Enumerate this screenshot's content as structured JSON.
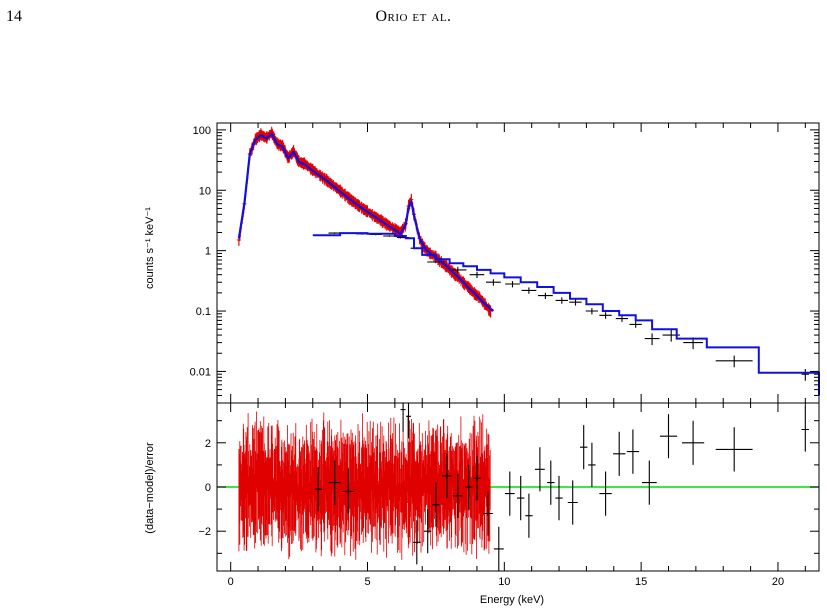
{
  "page": {
    "number": "14",
    "running_head": "Orio et al."
  },
  "colors": {
    "data_red": "#e00000",
    "data_black": "#000000",
    "model": "#1010e0",
    "zero_line": "#00dd00",
    "axis": "#000000"
  },
  "chart_data": [
    {
      "type": "line",
      "panel": "top",
      "title": "",
      "xlabel": "",
      "ylabel": "counts s⁻¹ keV⁻¹",
      "yscale": "log",
      "xlim": [
        -0.5,
        21.5
      ],
      "ylim": [
        0.003,
        130
      ],
      "y_ticks": [
        0.01,
        0.1,
        1,
        10,
        100
      ],
      "y_tick_labels": [
        "0.01",
        "0.1",
        "1",
        "10",
        "100"
      ],
      "series": [
        {
          "color": "#e00000",
          "style": "data with error bars",
          "x": [
            0.3,
            0.5,
            0.7,
            0.9,
            1.1,
            1.3,
            1.5,
            1.7,
            1.9,
            2.1,
            2.3,
            2.5,
            2.7,
            3.0,
            3.5,
            4.0,
            4.5,
            5.0,
            5.5,
            6.0,
            6.2,
            6.4,
            6.5,
            6.6,
            6.7,
            6.9,
            7.1,
            7.3,
            7.5,
            7.7,
            7.9,
            8.1,
            8.3,
            8.5,
            8.7,
            8.9,
            9.1,
            9.3,
            9.5
          ],
          "y": [
            1.5,
            6,
            40,
            70,
            85,
            75,
            90,
            60,
            55,
            35,
            45,
            30,
            28,
            22,
            15,
            10,
            6.5,
            4.5,
            3.2,
            2.3,
            2.0,
            2.8,
            5.5,
            7.0,
            4.0,
            1.6,
            1.1,
            0.9,
            0.8,
            0.65,
            0.55,
            0.45,
            0.38,
            0.3,
            0.25,
            0.2,
            0.17,
            0.13,
            0.1
          ]
        },
        {
          "color": "#000000",
          "style": "data with error bars",
          "x": [
            3.2,
            3.8,
            4.3,
            4.8,
            5.3,
            5.8,
            6.3,
            6.8,
            7.5,
            8.3,
            9.0,
            9.6,
            10.3,
            10.9,
            11.5,
            12.1,
            12.6,
            13.2,
            13.7,
            14.3,
            14.8,
            15.4,
            16.1,
            16.9,
            18.4,
            21.0
          ],
          "y": [
            1.8,
            1.95,
            1.95,
            1.9,
            1.85,
            1.75,
            1.65,
            1.1,
            0.65,
            0.48,
            0.4,
            0.3,
            0.28,
            0.22,
            0.18,
            0.15,
            0.14,
            0.1,
            0.085,
            0.075,
            0.06,
            0.035,
            0.04,
            0.03,
            0.015,
            0.009
          ]
        },
        {
          "color": "#1010e0",
          "style": "model (blue, first dataset)",
          "x": [
            0.3,
            0.5,
            0.7,
            0.9,
            1.1,
            1.3,
            1.5,
            1.7,
            1.9,
            2.1,
            2.3,
            2.5,
            2.7,
            3.0,
            3.5,
            4.0,
            4.5,
            5.0,
            5.5,
            6.0,
            6.2,
            6.4,
            6.5,
            6.6,
            6.7,
            6.9,
            7.1,
            7.3,
            7.5,
            7.7,
            7.9,
            8.1,
            8.3,
            8.5,
            8.7,
            8.9,
            9.1,
            9.3,
            9.6
          ],
          "y": [
            1.6,
            6,
            40,
            68,
            82,
            72,
            86,
            58,
            52,
            34,
            43,
            29,
            27,
            21,
            14.5,
            9.5,
            6.3,
            4.4,
            3.1,
            2.2,
            1.9,
            2.7,
            5.2,
            6.5,
            3.8,
            1.6,
            1.1,
            0.9,
            0.78,
            0.65,
            0.55,
            0.45,
            0.37,
            0.3,
            0.24,
            0.2,
            0.16,
            0.13,
            0.1
          ]
        },
        {
          "color": "#1010e0",
          "style": "model step (blue, second dataset)",
          "x": [
            3.0,
            4.0,
            5.0,
            6.0,
            6.4,
            6.7,
            7.0,
            7.5,
            8.0,
            8.5,
            9.0,
            9.5,
            10.0,
            10.6,
            11.2,
            11.8,
            12.4,
            13.0,
            13.6,
            14.2,
            14.8,
            15.4,
            16.3,
            17.4,
            19.3,
            21.5
          ],
          "y": [
            1.8,
            1.95,
            1.9,
            1.75,
            1.6,
            1.1,
            0.85,
            0.72,
            0.62,
            0.55,
            0.48,
            0.42,
            0.36,
            0.3,
            0.25,
            0.2,
            0.16,
            0.13,
            0.1,
            0.085,
            0.07,
            0.05,
            0.035,
            0.025,
            0.0095,
            0.004
          ]
        }
      ]
    },
    {
      "type": "scatter",
      "panel": "bottom",
      "title": "",
      "xlabel": "Energy (keV)",
      "ylabel": "(data−model)/error",
      "xlim": [
        -0.5,
        21.5
      ],
      "ylim": [
        -3.8,
        3.8
      ],
      "x_ticks": [
        0,
        5,
        10,
        15,
        20
      ],
      "x_tick_labels": [
        "0",
        "5",
        "10",
        "15",
        "20"
      ],
      "y_ticks": [
        -2,
        0,
        2
      ],
      "y_tick_labels": [
        "−2",
        "0",
        "2"
      ],
      "reference_line": {
        "y": 0,
        "color": "#00dd00"
      },
      "series": [
        {
          "color": "#e00000",
          "style": "residual bars, dense, ~±3 spread for 0.3–9.5 keV"
        },
        {
          "color": "#000000",
          "style": "residual crosses",
          "x": [
            3.2,
            3.8,
            4.3,
            6.3,
            6.5,
            6.8,
            7.2,
            7.5,
            7.9,
            8.3,
            8.7,
            9.0,
            9.4,
            9.8,
            10.2,
            10.6,
            10.9,
            11.3,
            11.7,
            12.0,
            12.5,
            12.9,
            13.2,
            13.7,
            14.2,
            14.7,
            15.3,
            16.0,
            16.9,
            18.4,
            21.0
          ],
          "y": [
            -0.1,
            0.2,
            -0.2,
            3.5,
            3.2,
            -2.5,
            -2.0,
            -0.8,
            0.5,
            -0.4,
            0.0,
            0.4,
            -1.2,
            -2.8,
            -0.3,
            -0.5,
            -1.3,
            0.8,
            0.2,
            -0.5,
            -0.7,
            1.8,
            1.0,
            -0.3,
            1.5,
            1.6,
            0.2,
            2.3,
            2.0,
            1.7,
            2.6
          ]
        }
      ]
    }
  ]
}
